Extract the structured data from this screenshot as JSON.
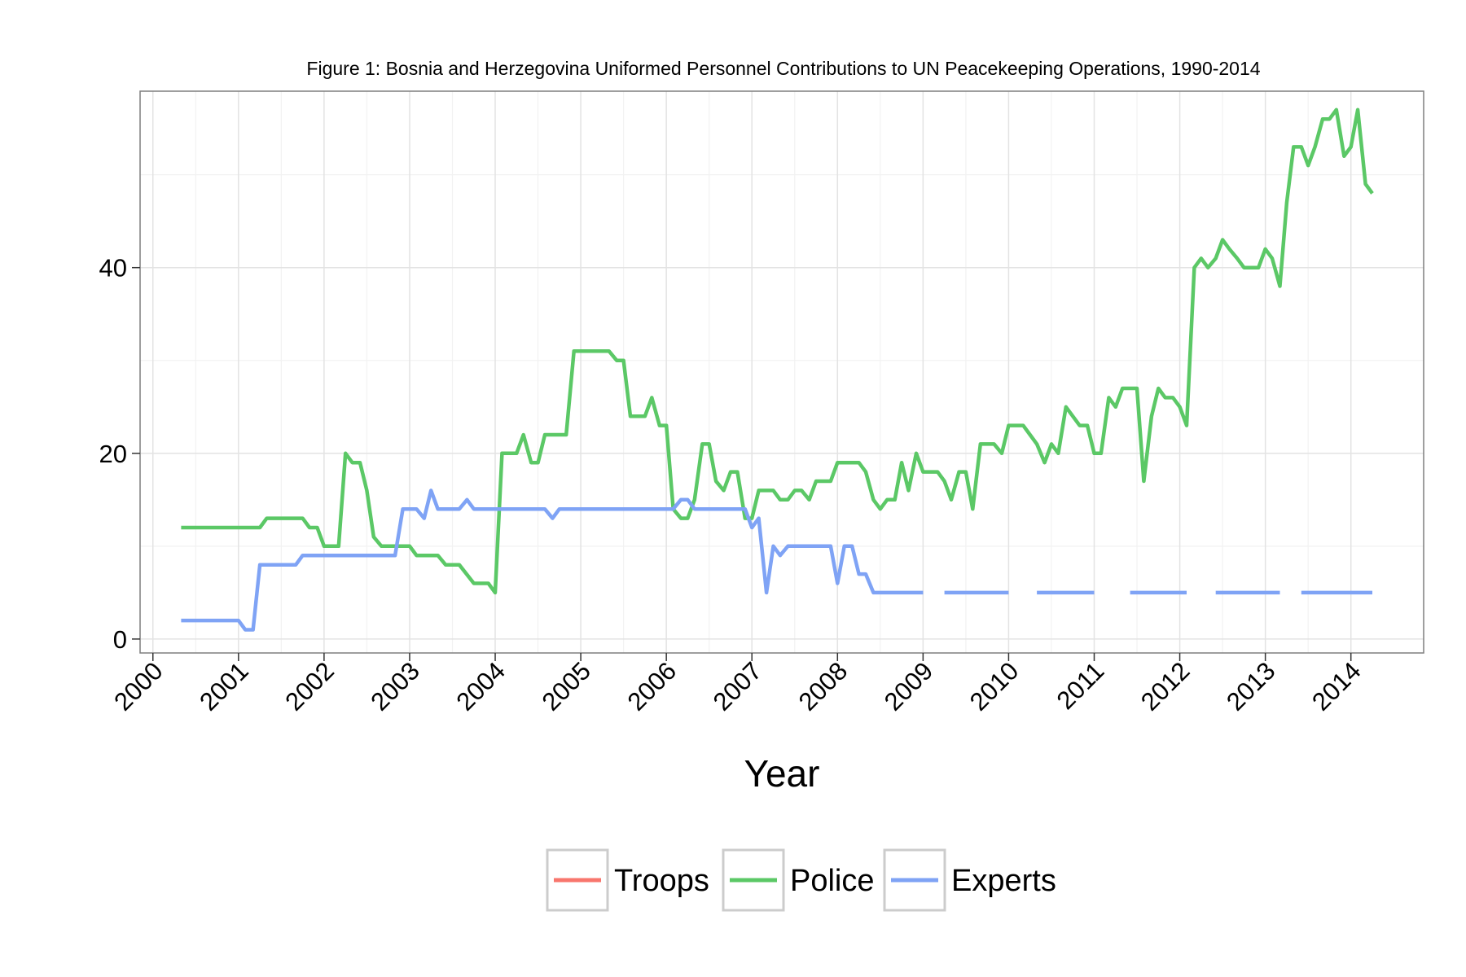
{
  "chart_data": {
    "type": "line",
    "title": "Figure 1: Bosnia and Herzegovina Uniformed Personnel Contributions to UN Peacekeeping Operations, 1990-2014",
    "xlabel": "Year",
    "ylabel": "",
    "xlim": [
      1999.85,
      2014.85
    ],
    "ylim": [
      -1.5,
      59
    ],
    "x_ticks": [
      2000,
      2001,
      2002,
      2003,
      2004,
      2005,
      2006,
      2007,
      2008,
      2009,
      2010,
      2011,
      2012,
      2013,
      2014
    ],
    "x_tick_labels": [
      "2000",
      "2001",
      "2002",
      "2003",
      "2004",
      "2005",
      "2006",
      "2007",
      "2008",
      "2009",
      "2010",
      "2011",
      "2012",
      "2013",
      "2014"
    ],
    "y_ticks": [
      0,
      20,
      40
    ],
    "y_tick_labels": [
      "0",
      "20",
      "40"
    ],
    "grid": true,
    "legend_position": "bottom",
    "series": [
      {
        "name": "Troops",
        "color": "#F8766D",
        "points": []
      },
      {
        "name": "Police",
        "color": "#5BC866",
        "points": [
          [
            2000.33,
            12
          ],
          [
            2001.25,
            12
          ],
          [
            2001.33,
            13
          ],
          [
            2001.75,
            13
          ],
          [
            2001.83,
            12
          ],
          [
            2001.92,
            12
          ],
          [
            2002.0,
            10
          ],
          [
            2002.17,
            10
          ],
          [
            2002.25,
            20
          ],
          [
            2002.33,
            19
          ],
          [
            2002.42,
            19
          ],
          [
            2002.5,
            16
          ],
          [
            2002.58,
            11
          ],
          [
            2002.67,
            10
          ],
          [
            2003.0,
            10
          ],
          [
            2003.08,
            9
          ],
          [
            2003.33,
            9
          ],
          [
            2003.42,
            8
          ],
          [
            2003.58,
            8
          ],
          [
            2003.75,
            6
          ],
          [
            2003.92,
            6
          ],
          [
            2004.0,
            5
          ],
          [
            2004.08,
            20
          ],
          [
            2004.25,
            20
          ],
          [
            2004.33,
            22
          ],
          [
            2004.42,
            19
          ],
          [
            2004.5,
            19
          ],
          [
            2004.58,
            22
          ],
          [
            2004.83,
            22
          ],
          [
            2004.92,
            31
          ],
          [
            2005.33,
            31
          ],
          [
            2005.42,
            30
          ],
          [
            2005.5,
            30
          ],
          [
            2005.58,
            24
          ],
          [
            2005.75,
            24
          ],
          [
            2005.83,
            26
          ],
          [
            2005.92,
            23
          ],
          [
            2006.0,
            23
          ],
          [
            2006.08,
            14
          ],
          [
            2006.17,
            13
          ],
          [
            2006.25,
            13
          ],
          [
            2006.33,
            15
          ],
          [
            2006.42,
            21
          ],
          [
            2006.5,
            21
          ],
          [
            2006.58,
            17
          ],
          [
            2006.67,
            16
          ],
          [
            2006.75,
            18
          ],
          [
            2006.83,
            18
          ],
          [
            2006.92,
            13
          ],
          [
            2007.0,
            13
          ],
          [
            2007.08,
            16
          ],
          [
            2007.25,
            16
          ],
          [
            2007.33,
            15
          ],
          [
            2007.42,
            15
          ],
          [
            2007.5,
            16
          ],
          [
            2007.58,
            16
          ],
          [
            2007.67,
            15
          ],
          [
            2007.75,
            17
          ],
          [
            2007.92,
            17
          ],
          [
            2008.0,
            19
          ],
          [
            2008.25,
            19
          ],
          [
            2008.33,
            18
          ],
          [
            2008.42,
            15
          ],
          [
            2008.5,
            14
          ],
          [
            2008.58,
            15
          ],
          [
            2008.67,
            15
          ],
          [
            2008.75,
            19
          ],
          [
            2008.83,
            16
          ],
          [
            2008.92,
            20
          ],
          [
            2009.0,
            18
          ],
          [
            2009.17,
            18
          ],
          [
            2009.25,
            17
          ],
          [
            2009.33,
            15
          ],
          [
            2009.42,
            18
          ],
          [
            2009.5,
            18
          ],
          [
            2009.58,
            14
          ],
          [
            2009.67,
            21
          ],
          [
            2009.83,
            21
          ],
          [
            2009.92,
            20
          ],
          [
            2010.0,
            23
          ],
          [
            2010.17,
            23
          ],
          [
            2010.25,
            22
          ],
          [
            2010.33,
            21
          ],
          [
            2010.42,
            19
          ],
          [
            2010.5,
            21
          ],
          [
            2010.58,
            20
          ],
          [
            2010.67,
            25
          ],
          [
            2010.75,
            24
          ],
          [
            2010.83,
            23
          ],
          [
            2010.92,
            23
          ],
          [
            2011.0,
            20
          ],
          [
            2011.08,
            20
          ],
          [
            2011.17,
            26
          ],
          [
            2011.25,
            25
          ],
          [
            2011.33,
            27
          ],
          [
            2011.5,
            27
          ],
          [
            2011.58,
            17
          ],
          [
            2011.67,
            24
          ],
          [
            2011.75,
            27
          ],
          [
            2011.83,
            26
          ],
          [
            2011.92,
            26
          ],
          [
            2012.0,
            25
          ],
          [
            2012.08,
            23
          ],
          [
            2012.17,
            40
          ],
          [
            2012.25,
            41
          ],
          [
            2012.33,
            40
          ],
          [
            2012.42,
            41
          ],
          [
            2012.5,
            43
          ],
          [
            2012.58,
            42
          ],
          [
            2012.67,
            41
          ],
          [
            2012.75,
            40
          ],
          [
            2012.92,
            40
          ],
          [
            2013.0,
            42
          ],
          [
            2013.08,
            41
          ],
          [
            2013.17,
            38
          ],
          [
            2013.25,
            47
          ],
          [
            2013.33,
            53
          ],
          [
            2013.42,
            53
          ],
          [
            2013.5,
            51
          ],
          [
            2013.58,
            53
          ],
          [
            2013.67,
            56
          ],
          [
            2013.75,
            56
          ],
          [
            2013.83,
            57
          ],
          [
            2013.92,
            52
          ],
          [
            2014.0,
            53
          ],
          [
            2014.08,
            57
          ],
          [
            2014.17,
            49
          ],
          [
            2014.25,
            48
          ]
        ]
      },
      {
        "name": "Experts",
        "color": "#7FA3F5",
        "points": [
          [
            2000.33,
            2
          ],
          [
            2001.0,
            2
          ],
          [
            2001.08,
            1
          ],
          [
            2001.17,
            1
          ],
          [
            2001.25,
            8
          ],
          [
            2001.67,
            8
          ],
          [
            2001.75,
            9
          ],
          [
            2002.83,
            9
          ],
          [
            2002.92,
            14
          ],
          [
            2003.08,
            14
          ],
          [
            2003.17,
            13
          ],
          [
            2003.25,
            16
          ],
          [
            2003.33,
            14
          ],
          [
            2003.58,
            14
          ],
          [
            2003.67,
            15
          ],
          [
            2003.75,
            14
          ],
          [
            2004.58,
            14
          ],
          [
            2004.67,
            13
          ],
          [
            2004.75,
            14
          ],
          [
            2006.08,
            14
          ],
          [
            2006.17,
            15
          ],
          [
            2006.25,
            15
          ],
          [
            2006.33,
            14
          ],
          [
            2006.92,
            14
          ],
          [
            2007.0,
            12
          ],
          [
            2007.08,
            13
          ],
          [
            2007.17,
            5
          ],
          [
            2007.25,
            10
          ],
          [
            2007.33,
            9
          ],
          [
            2007.42,
            10
          ],
          [
            2007.92,
            10
          ],
          [
            2008.0,
            6
          ],
          [
            2008.08,
            10
          ],
          [
            2008.17,
            10
          ],
          [
            2008.25,
            7
          ],
          [
            2008.33,
            7
          ],
          [
            2008.42,
            5
          ],
          [
            2009.0,
            5
          ],
          null,
          [
            2009.25,
            5
          ],
          [
            2010.0,
            5
          ],
          null,
          [
            2010.33,
            5
          ],
          [
            2011.0,
            5
          ],
          null,
          [
            2011.42,
            5
          ],
          [
            2012.08,
            5
          ],
          null,
          [
            2012.42,
            5
          ],
          [
            2013.17,
            5
          ],
          null,
          [
            2013.42,
            5
          ],
          [
            2014.25,
            5
          ]
        ]
      }
    ]
  }
}
